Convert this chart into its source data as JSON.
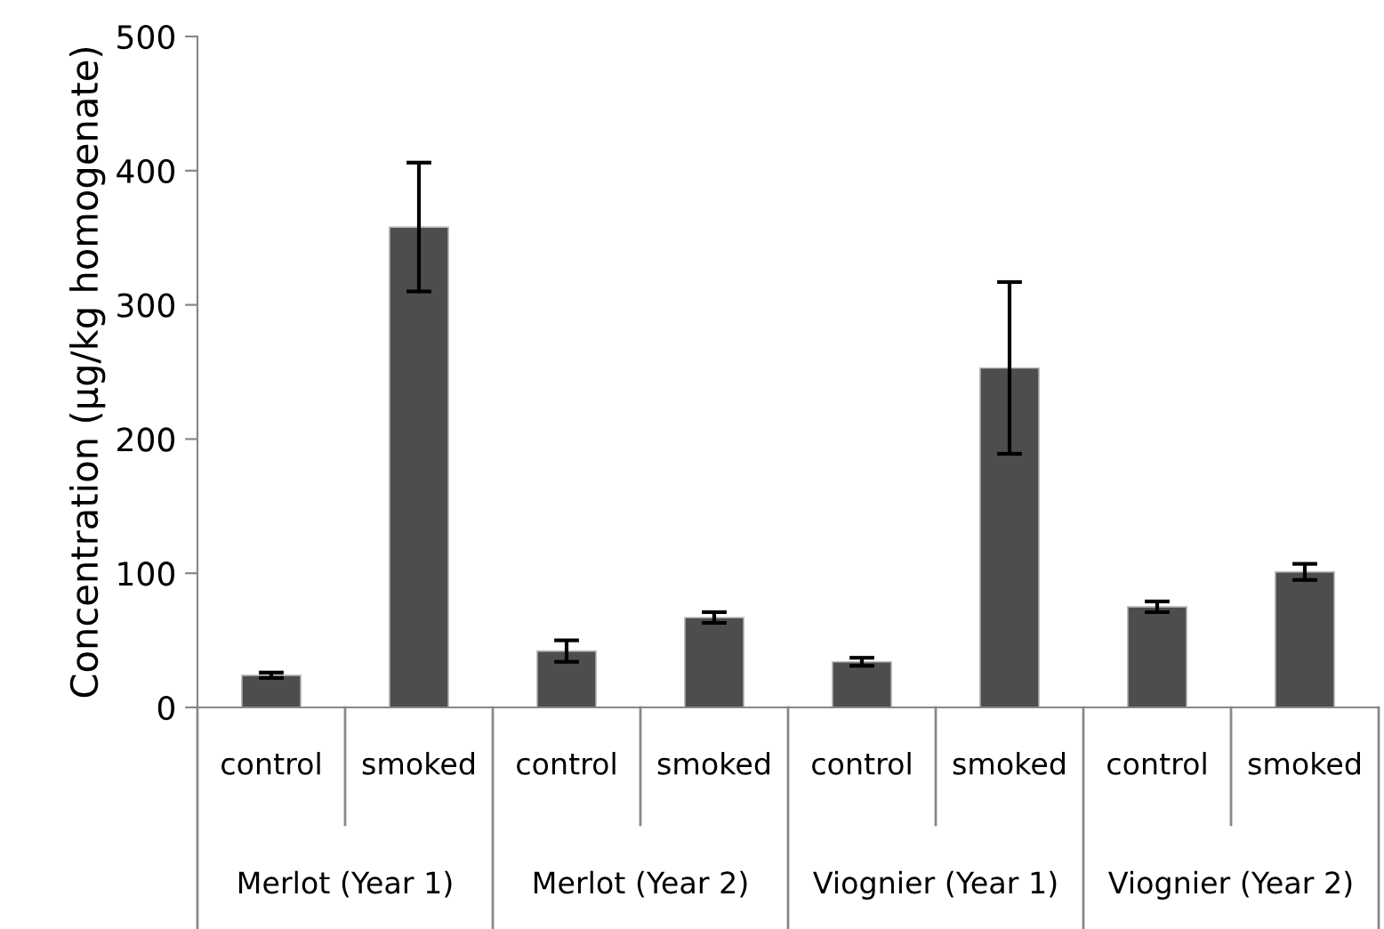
{
  "chart_data": {
    "type": "bar",
    "ylabel": "Concentration (µg/kg homogenate)",
    "categories": [
      "control",
      "smoked",
      "control",
      "smoked",
      "control",
      "smoked",
      "control",
      "smoked"
    ],
    "values": [
      24,
      358,
      42,
      67,
      34,
      253,
      75,
      101
    ],
    "errors": [
      2,
      48,
      8,
      4,
      3,
      64,
      4,
      6
    ],
    "color": "#4d4d4d",
    "ylim": [
      0,
      500
    ],
    "yticks": [
      0,
      100,
      200,
      300,
      400,
      500
    ],
    "grid": false,
    "legend": false,
    "annotations": [
      "Merlot (Year 1)",
      "Merlot (Year 2)",
      "Viognier (Year 1)",
      "Viognier (Year 2)"
    ]
  }
}
